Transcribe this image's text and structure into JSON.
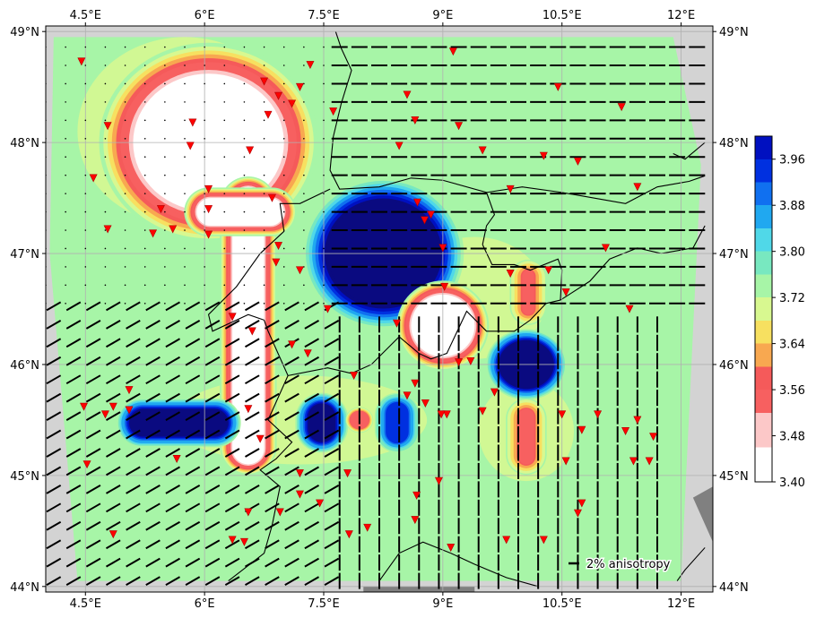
{
  "map": {
    "lon_range": [
      4.0,
      12.4
    ],
    "lat_range": [
      43.95,
      49.05
    ],
    "lon_ticks": [
      {
        "value": 4.5,
        "label": "4.5°E"
      },
      {
        "value": 6.0,
        "label": "6°E"
      },
      {
        "value": 7.5,
        "label": "7.5°E"
      },
      {
        "value": 9.0,
        "label": "9°E"
      },
      {
        "value": 10.5,
        "label": "10.5°E"
      },
      {
        "value": 12.0,
        "label": "12°E"
      }
    ],
    "lat_ticks": [
      {
        "value": 44.0,
        "label": "44°N"
      },
      {
        "value": 45.0,
        "label": "45°N"
      },
      {
        "value": 46.0,
        "label": "46°N"
      },
      {
        "value": 47.0,
        "label": "47°N"
      },
      {
        "value": 48.0,
        "label": "48°N"
      },
      {
        "value": 49.0,
        "label": "49°N"
      }
    ],
    "colors": {
      "ocean_no_data": "#d3d3d3",
      "sea_dark": "#808080",
      "station": "#ff0000",
      "coastline": "#000000",
      "grid": "#b0b0b0"
    },
    "background_value": 3.7,
    "anomalies": [
      {
        "type": "ring",
        "lon": 6.05,
        "lat": 48.0,
        "r_lon": 0.95,
        "r_lat": 0.62,
        "value": 3.4,
        "note": "low-velocity blob NW"
      },
      {
        "type": "box",
        "lon": [
          6.35,
          6.75
        ],
        "lat": [
          45.1,
          47.6
        ],
        "value": 3.4
      },
      {
        "type": "box",
        "lon": [
          5.9,
          7.0
        ],
        "lat": [
          47.25,
          47.5
        ],
        "value": 3.4
      },
      {
        "type": "ring",
        "lon": 8.25,
        "lat": 47.0,
        "r_lon": 0.7,
        "r_lat": 0.47,
        "value": 4.0
      },
      {
        "type": "ring",
        "lon": 9.0,
        "lat": 46.35,
        "r_lon": 0.4,
        "r_lat": 0.28,
        "value": 3.4
      },
      {
        "type": "ring",
        "lon": 10.05,
        "lat": 46.0,
        "r_lon": 0.35,
        "r_lat": 0.22,
        "value": 3.98
      },
      {
        "type": "box",
        "lon": [
          10.0,
          10.15
        ],
        "lat": [
          46.45,
          46.85
        ],
        "value": 3.52
      },
      {
        "type": "box",
        "lon": [
          9.95,
          10.15
        ],
        "lat": [
          45.1,
          45.6
        ],
        "value": 3.52
      },
      {
        "type": "box",
        "lon": [
          5.05,
          6.3
        ],
        "lat": [
          45.35,
          45.6
        ],
        "value": 3.98
      },
      {
        "type": "box",
        "lon": [
          7.3,
          7.65
        ],
        "lat": [
          45.3,
          45.65
        ],
        "value": 3.98
      },
      {
        "type": "box",
        "lon": [
          8.3,
          8.55
        ],
        "lat": [
          45.3,
          45.65
        ],
        "value": 3.92
      },
      {
        "type": "ring",
        "lon": 7.95,
        "lat": 45.5,
        "r_lon": 0.12,
        "r_lat": 0.08,
        "value": 3.52
      }
    ],
    "stations": [
      [
        4.45,
        48.73
      ],
      [
        7.33,
        48.7
      ],
      [
        6.75,
        48.55
      ],
      [
        6.93,
        48.42
      ],
      [
        7.2,
        48.5
      ],
      [
        7.1,
        48.35
      ],
      [
        7.62,
        48.28
      ],
      [
        8.55,
        48.43
      ],
      [
        9.13,
        48.82
      ],
      [
        10.45,
        48.5
      ],
      [
        11.25,
        48.32
      ],
      [
        4.78,
        48.15
      ],
      [
        5.85,
        48.18
      ],
      [
        6.8,
        48.25
      ],
      [
        8.65,
        48.2
      ],
      [
        9.2,
        48.15
      ],
      [
        5.82,
        47.97
      ],
      [
        6.57,
        47.93
      ],
      [
        8.45,
        47.97
      ],
      [
        9.5,
        47.93
      ],
      [
        10.27,
        47.88
      ],
      [
        10.7,
        47.83
      ],
      [
        4.6,
        47.68
      ],
      [
        6.05,
        47.58
      ],
      [
        9.85,
        47.58
      ],
      [
        11.45,
        47.6
      ],
      [
        6.85,
        47.5
      ],
      [
        8.68,
        47.46
      ],
      [
        5.45,
        47.4
      ],
      [
        6.05,
        47.4
      ],
      [
        8.85,
        47.35
      ],
      [
        8.77,
        47.3
      ],
      [
        4.78,
        47.22
      ],
      [
        5.6,
        47.22
      ],
      [
        5.35,
        47.18
      ],
      [
        6.05,
        47.17
      ],
      [
        6.93,
        47.07
      ],
      [
        9.0,
        47.05
      ],
      [
        11.05,
        47.05
      ],
      [
        6.9,
        46.92
      ],
      [
        7.2,
        46.85
      ],
      [
        9.85,
        46.82
      ],
      [
        10.33,
        46.85
      ],
      [
        9.02,
        46.7
      ],
      [
        10.55,
        46.65
      ],
      [
        11.35,
        46.5
      ],
      [
        7.55,
        46.5
      ],
      [
        6.35,
        46.43
      ],
      [
        8.42,
        46.37
      ],
      [
        6.6,
        46.3
      ],
      [
        7.1,
        46.18
      ],
      [
        7.3,
        46.1
      ],
      [
        9.35,
        46.03
      ],
      [
        9.2,
        46.02
      ],
      [
        7.88,
        45.9
      ],
      [
        8.65,
        45.83
      ],
      [
        9.65,
        45.75
      ],
      [
        8.55,
        45.72
      ],
      [
        5.05,
        45.77
      ],
      [
        4.85,
        45.62
      ],
      [
        5.05,
        45.59
      ],
      [
        4.48,
        45.62
      ],
      [
        4.75,
        45.55
      ],
      [
        6.55,
        45.6
      ],
      [
        8.78,
        45.65
      ],
      [
        9.05,
        45.55
      ],
      [
        8.98,
        45.55
      ],
      [
        9.5,
        45.58
      ],
      [
        10.5,
        45.55
      ],
      [
        10.95,
        45.55
      ],
      [
        11.45,
        45.5
      ],
      [
        10.75,
        45.41
      ],
      [
        11.3,
        45.4
      ],
      [
        11.65,
        45.35
      ],
      [
        6.7,
        45.33
      ],
      [
        5.65,
        45.15
      ],
      [
        4.52,
        45.1
      ],
      [
        10.55,
        45.13
      ],
      [
        11.4,
        45.13
      ],
      [
        11.6,
        45.13
      ],
      [
        7.2,
        45.02
      ],
      [
        7.8,
        45.02
      ],
      [
        8.95,
        44.95
      ],
      [
        7.2,
        44.83
      ],
      [
        8.67,
        44.82
      ],
      [
        7.45,
        44.75
      ],
      [
        10.75,
        44.75
      ],
      [
        10.7,
        44.66
      ],
      [
        6.55,
        44.67
      ],
      [
        6.95,
        44.67
      ],
      [
        8.65,
        44.6
      ],
      [
        8.05,
        44.53
      ],
      [
        7.82,
        44.47
      ],
      [
        4.85,
        44.47
      ],
      [
        9.8,
        44.42
      ],
      [
        10.27,
        44.42
      ],
      [
        6.35,
        44.42
      ],
      [
        6.5,
        44.4
      ],
      [
        9.1,
        44.35
      ]
    ],
    "anisotropy_zones": [
      {
        "lon": [
          7.7,
          12.2
        ],
        "lat": [
          46.55,
          48.95
        ],
        "azimuth_deg": 90
      },
      {
        "lon": [
          4.1,
          7.6
        ],
        "lat": [
          44.05,
          46.55
        ],
        "azimuth_deg": 60
      },
      {
        "lon": [
          7.7,
          11.8
        ],
        "lat": [
          44.05,
          46.5
        ],
        "azimuth_deg": 0
      },
      {
        "lon": [
          4.0,
          7.5
        ],
        "lat": [
          46.55,
          48.95
        ],
        "azimuth_deg": 0,
        "dots": true
      }
    ]
  },
  "colorbar": {
    "vmin": 3.4,
    "vmax": 4.0,
    "ticks": [
      "3.40",
      "3.48",
      "3.56",
      "3.64",
      "3.72",
      "3.80",
      "3.88",
      "3.96"
    ],
    "tick_values": [
      3.4,
      3.48,
      3.56,
      3.64,
      3.72,
      3.8,
      3.88,
      3.96
    ],
    "stops": [
      {
        "v": 3.4,
        "c": "#ffffff"
      },
      {
        "v": 3.46,
        "c": "#fcc8c8"
      },
      {
        "v": 3.52,
        "c": "#f76060"
      },
      {
        "v": 3.56,
        "c": "#f55a5a"
      },
      {
        "v": 3.6,
        "c": "#f8a850"
      },
      {
        "v": 3.64,
        "c": "#f7e060"
      },
      {
        "v": 3.68,
        "c": "#d8f890"
      },
      {
        "v": 3.72,
        "c": "#a7f5a7"
      },
      {
        "v": 3.76,
        "c": "#78e8c0"
      },
      {
        "v": 3.8,
        "c": "#50d8e8"
      },
      {
        "v": 3.84,
        "c": "#20a8f0"
      },
      {
        "v": 3.88,
        "c": "#1070f0"
      },
      {
        "v": 3.92,
        "c": "#0030e0"
      },
      {
        "v": 3.96,
        "c": "#0010c0"
      },
      {
        "v": 4.0,
        "c": "#0a0a80"
      }
    ]
  },
  "legend": {
    "label": "2% anisotropy"
  }
}
